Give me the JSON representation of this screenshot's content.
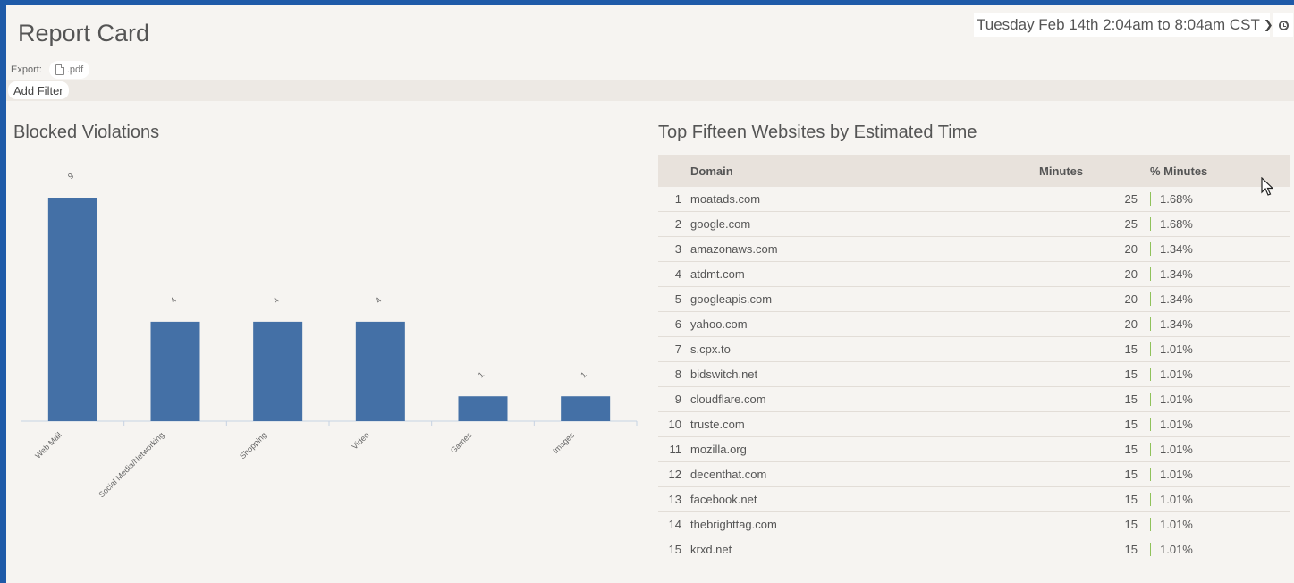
{
  "header": {
    "title": "Report Card",
    "export_label": "Export:",
    "export_pdf_label": ".pdf",
    "date_range": "Tuesday Feb 14th 2:04am to 8:04am CST"
  },
  "filter": {
    "add_label": "Add Filter"
  },
  "chart_title": "Blocked Violations",
  "table_title": "Top Fifteen Websites by Estimated Time",
  "chart_data": {
    "type": "bar",
    "title": "Blocked Violations",
    "categories": [
      "Web Mail",
      "Social Media/Networking",
      "Shopping",
      "Video",
      "Games",
      "Images"
    ],
    "values": [
      9,
      4,
      4,
      4,
      1,
      1
    ],
    "ylim": [
      0,
      9
    ],
    "grid": false,
    "bar_color": "#4470a6"
  },
  "table": {
    "headers": {
      "rank": "",
      "domain": "Domain",
      "minutes": "Minutes",
      "pct": "% Minutes"
    },
    "rows": [
      {
        "rank": "1",
        "domain": "moatads.com",
        "minutes": "25",
        "pct": "1.68%"
      },
      {
        "rank": "2",
        "domain": "google.com",
        "minutes": "25",
        "pct": "1.68%"
      },
      {
        "rank": "3",
        "domain": "amazonaws.com",
        "minutes": "20",
        "pct": "1.34%"
      },
      {
        "rank": "4",
        "domain": "atdmt.com",
        "minutes": "20",
        "pct": "1.34%"
      },
      {
        "rank": "5",
        "domain": "googleapis.com",
        "minutes": "20",
        "pct": "1.34%"
      },
      {
        "rank": "6",
        "domain": "yahoo.com",
        "minutes": "20",
        "pct": "1.34%"
      },
      {
        "rank": "7",
        "domain": "s.cpx.to",
        "minutes": "15",
        "pct": "1.01%"
      },
      {
        "rank": "8",
        "domain": "bidswitch.net",
        "minutes": "15",
        "pct": "1.01%"
      },
      {
        "rank": "9",
        "domain": "cloudflare.com",
        "minutes": "15",
        "pct": "1.01%"
      },
      {
        "rank": "10",
        "domain": "truste.com",
        "minutes": "15",
        "pct": "1.01%"
      },
      {
        "rank": "11",
        "domain": "mozilla.org",
        "minutes": "15",
        "pct": "1.01%"
      },
      {
        "rank": "12",
        "domain": "decenthat.com",
        "minutes": "15",
        "pct": "1.01%"
      },
      {
        "rank": "13",
        "domain": "facebook.net",
        "minutes": "15",
        "pct": "1.01%"
      },
      {
        "rank": "14",
        "domain": "thebrighttag.com",
        "minutes": "15",
        "pct": "1.01%"
      },
      {
        "rank": "15",
        "domain": "krxd.net",
        "minutes": "15",
        "pct": "1.01%"
      }
    ]
  },
  "icons": {
    "export_pdf": "file-icon",
    "date_dropdown": "chevron-down-icon",
    "clock": "clock-icon",
    "cursor": "mouse-pointer-icon"
  }
}
